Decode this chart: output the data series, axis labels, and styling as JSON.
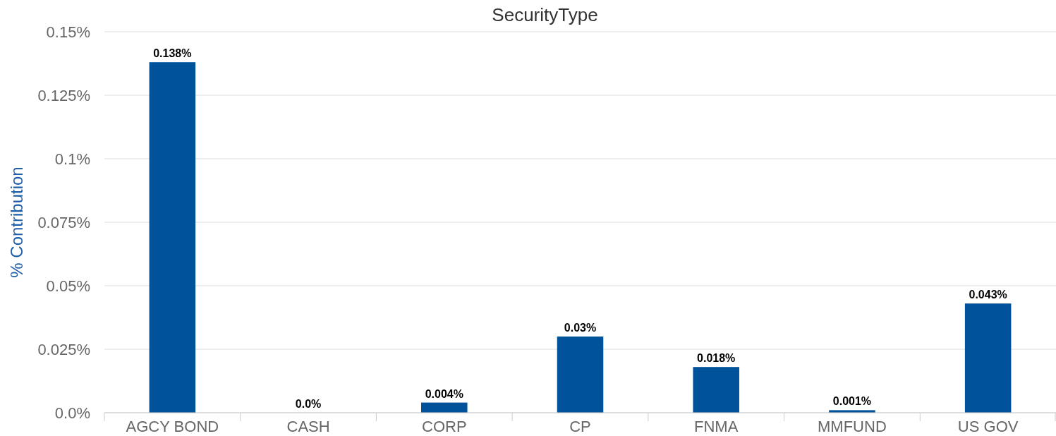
{
  "chart_data": {
    "type": "bar",
    "title": "SecurityType",
    "ylabel": "% Contribution",
    "categories": [
      "AGCY BOND",
      "CASH",
      "CORP",
      "CP",
      "FNMA",
      "MMFUND",
      "US GOV"
    ],
    "values": [
      0.138,
      0.0,
      0.004,
      0.03,
      0.018,
      0.001,
      0.043
    ],
    "value_labels": [
      "0.138%",
      "0.0%",
      "0.004%",
      "0.03%",
      "0.018%",
      "0.001%",
      "0.043%"
    ],
    "color": "#00529b",
    "ylim": [
      0,
      0.15
    ],
    "yticks": [
      {
        "value": 0,
        "label": "0.0%"
      },
      {
        "value": 0.025,
        "label": "0.025%"
      },
      {
        "value": 0.05,
        "label": "0.05%"
      },
      {
        "value": 0.075,
        "label": "0.075%"
      },
      {
        "value": 0.1,
        "label": "0.1%"
      },
      {
        "value": 0.125,
        "label": "0.125%"
      },
      {
        "value": 0.15,
        "label": "0.15%"
      }
    ],
    "grid": "y"
  }
}
